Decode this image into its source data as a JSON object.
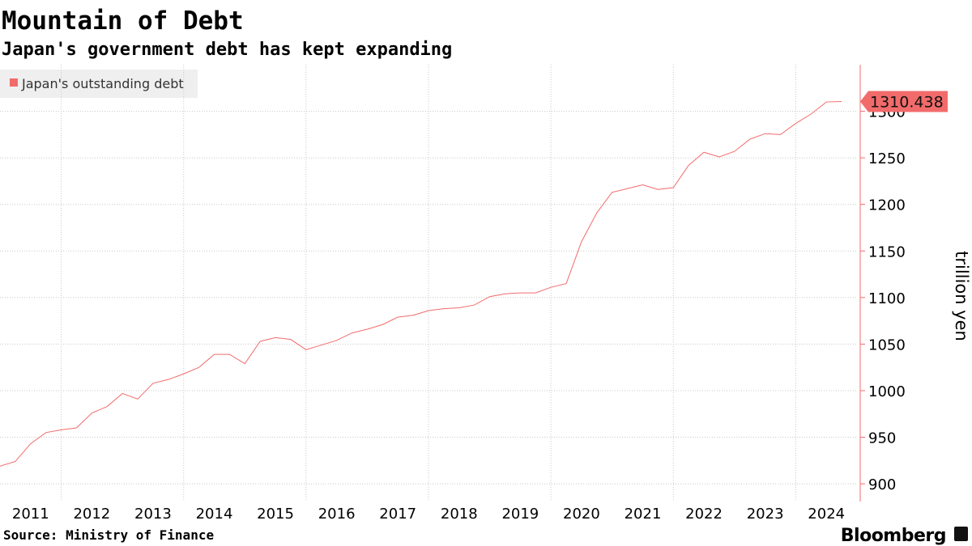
{
  "chart_data": {
    "type": "line",
    "title": "Mountain of Debt",
    "subtitle": "Japan's government debt has kept expanding",
    "y_label": "trillion yen",
    "source": "Source: Ministry of Finance",
    "brand": "Bloomberg",
    "x": [
      2011,
      2011.25,
      2011.5,
      2011.75,
      2012,
      2012.25,
      2012.5,
      2012.75,
      2013,
      2013.25,
      2013.5,
      2013.75,
      2014,
      2014.25,
      2014.5,
      2014.75,
      2015,
      2015.25,
      2015.5,
      2015.75,
      2016,
      2016.25,
      2016.5,
      2016.75,
      2017,
      2017.25,
      2017.5,
      2017.75,
      2018,
      2018.25,
      2018.5,
      2018.75,
      2019,
      2019.25,
      2019.5,
      2019.75,
      2020,
      2020.25,
      2020.5,
      2020.75,
      2021,
      2021.25,
      2021.5,
      2021.75,
      2022,
      2022.25,
      2022.5,
      2022.75,
      2023,
      2023.25,
      2023.5,
      2023.75,
      2024,
      2024.25,
      2024.5,
      2024.75
    ],
    "series": [
      {
        "name": "Japan's outstanding debt",
        "color": "#f26b6b",
        "values": [
          919,
          924,
          943,
          955,
          958,
          960,
          976,
          983,
          997,
          991,
          1008,
          1012,
          1018,
          1025,
          1039,
          1039,
          1029,
          1053,
          1057,
          1055,
          1044,
          1049,
          1054,
          1062,
          1066,
          1071,
          1079,
          1081,
          1086,
          1088,
          1089,
          1092,
          1101,
          1104,
          1105,
          1105,
          1111,
          1115,
          1160,
          1191,
          1213,
          1217,
          1221,
          1216,
          1218,
          1242,
          1256,
          1251,
          1257,
          1270,
          1276,
          1275,
          1287,
          1297,
          1310,
          1310.438
        ]
      }
    ],
    "xlim": [
      2011,
      2025
    ],
    "xticks": [
      2011,
      2012,
      2013,
      2014,
      2015,
      2016,
      2017,
      2018,
      2019,
      2020,
      2021,
      2022,
      2023,
      2024
    ],
    "ylim": [
      881,
      1350
    ],
    "yticks": [
      900,
      950,
      1000,
      1050,
      1100,
      1150,
      1200,
      1250,
      1300
    ],
    "grid": true
  }
}
